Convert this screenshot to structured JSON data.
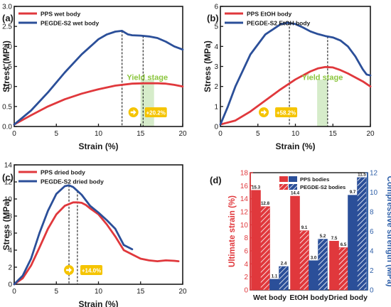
{
  "colors": {
    "red": "#e0383c",
    "blue": "#2b4f99",
    "yield_fill": "#c8e6b8",
    "yield_text": "#8cc63f",
    "badge": "#f5c400",
    "axis": "#1a1a1a",
    "right_axis": "#2e5fa8"
  },
  "chart_data": [
    {
      "panel": "(a)",
      "type": "line",
      "xlabel": "Strain (%)",
      "ylabel": "Stress (MPa)",
      "xlim": [
        0,
        20
      ],
      "ylim": [
        0,
        3.0
      ],
      "xticks": [
        0,
        5,
        10,
        15,
        20
      ],
      "yticks": [
        0,
        0.5,
        1.0,
        1.5,
        2.0,
        2.5,
        3.0
      ],
      "ytick_labels": [
        "0.0",
        "0.5",
        "1.0",
        "1.5",
        "2.0",
        "2.5",
        "3.0"
      ],
      "legend_position": "top-left",
      "series": [
        {
          "name": "PPS wet body",
          "color": "#e0383c",
          "x": [
            0,
            2,
            4,
            6,
            8,
            10,
            12,
            14,
            15.5,
            17,
            18,
            19,
            20
          ],
          "y": [
            0.05,
            0.28,
            0.5,
            0.68,
            0.82,
            0.93,
            1.02,
            1.07,
            1.08,
            1.08,
            1.07,
            1.04,
            1.0
          ]
        },
        {
          "name": "PEGDE-S2 wet body",
          "color": "#2b4f99",
          "x": [
            0,
            2,
            4,
            6,
            8,
            10,
            11,
            12,
            12.8,
            13.5,
            14,
            15,
            16,
            17,
            18,
            19,
            20
          ],
          "y": [
            0.05,
            0.4,
            0.85,
            1.35,
            1.8,
            2.18,
            2.3,
            2.37,
            2.39,
            2.3,
            2.28,
            2.27,
            2.25,
            2.21,
            2.12,
            2.0,
            1.92
          ]
        }
      ],
      "markers_x": [
        12.8,
        15.3
      ],
      "yield_stage": {
        "label": "Yield stage",
        "x_range": [
          15.0,
          16.6
        ]
      },
      "badge": {
        "text": "+20.2%"
      }
    },
    {
      "panel": "(b)",
      "type": "line",
      "xlabel": "Strain (%)",
      "ylabel": "Stress (MPa)",
      "xlim": [
        0,
        20
      ],
      "ylim": [
        0,
        6
      ],
      "xticks": [
        0,
        5,
        10,
        15,
        20
      ],
      "yticks": [
        0,
        1,
        2,
        3,
        4,
        5,
        6
      ],
      "ytick_labels": [
        "0",
        "1",
        "2",
        "3",
        "4",
        "5",
        "6"
      ],
      "legend_position": "top-left",
      "series": [
        {
          "name": "PPS EtOH body",
          "color": "#e0383c",
          "x": [
            0,
            2,
            4,
            6,
            8,
            10,
            12,
            13,
            14,
            15,
            16,
            17,
            18,
            19,
            20
          ],
          "y": [
            0.1,
            0.3,
            0.75,
            1.3,
            1.85,
            2.35,
            2.75,
            2.9,
            2.97,
            2.95,
            2.82,
            2.65,
            2.45,
            2.25,
            2.0
          ]
        },
        {
          "name": "PEGDE-S2 EtOH body",
          "color": "#2b4f99",
          "x": [
            0,
            1,
            2,
            4,
            6,
            8,
            9,
            10,
            11,
            12,
            13,
            14,
            15,
            16,
            17,
            18,
            19,
            19.5,
            20
          ],
          "y": [
            0.1,
            1.0,
            2.0,
            3.6,
            4.6,
            5.1,
            5.18,
            5.12,
            4.95,
            4.75,
            4.62,
            4.52,
            4.45,
            4.3,
            4.0,
            3.5,
            2.85,
            2.6,
            2.55
          ]
        }
      ],
      "markers_x": [
        9.2,
        14.3
      ],
      "yield_stage": {
        "label": "Yield stage",
        "x_range": [
          12.9,
          14.3
        ]
      },
      "badge": {
        "text": "+58.2%"
      }
    },
    {
      "panel": "(c)",
      "type": "line",
      "xlabel": "Strain (%)",
      "ylabel": "Stress (MPa)",
      "xlim": [
        0,
        20
      ],
      "ylim": [
        0,
        14
      ],
      "xticks": [
        0,
        5,
        10,
        15,
        20
      ],
      "yticks": [
        0,
        2,
        4,
        6,
        8,
        10,
        12,
        14
      ],
      "ytick_labels": [
        "0",
        "2",
        "4",
        "6",
        "8",
        "10",
        "12",
        "14"
      ],
      "legend_position": "top-left",
      "series": [
        {
          "name": "PPS dried body",
          "color": "#e0383c",
          "x": [
            0,
            1,
            2,
            3,
            4,
            5,
            6,
            7,
            7.5,
            8,
            8.5,
            9,
            10,
            11,
            12,
            13,
            14,
            15,
            16,
            17,
            18,
            19,
            19.5
          ],
          "y": [
            0,
            0.7,
            2.2,
            4.3,
            6.5,
            8.2,
            9.2,
            9.6,
            9.6,
            9.55,
            9.3,
            8.9,
            8.2,
            7.0,
            5.6,
            4.0,
            3.5,
            3.0,
            2.8,
            2.7,
            2.8,
            2.75,
            2.7
          ]
        },
        {
          "name": "PEGDE-S2 dried body",
          "color": "#2b4f99",
          "x": [
            0,
            1,
            2,
            3,
            4,
            5,
            6,
            6.5,
            7,
            8,
            9,
            10,
            11,
            12,
            13,
            14
          ],
          "y": [
            0,
            1.0,
            3.0,
            6.0,
            8.6,
            10.6,
            11.5,
            11.6,
            11.4,
            10.5,
            9.2,
            8.4,
            7.5,
            6.5,
            4.6,
            4.1
          ]
        }
      ],
      "markers_x": [
        6.5,
        7.5
      ],
      "badge": {
        "text": "+14.0%"
      }
    },
    {
      "panel": "(d)",
      "type": "bar",
      "categories": [
        "Wet body",
        "EtOH body",
        "Dried body"
      ],
      "ylabel": "Ultimate strain (%)",
      "y2label": "Compressive strength (MPa)",
      "ylim": [
        0,
        18
      ],
      "y2lim": [
        0,
        12
      ],
      "yticks": [
        0,
        2,
        4,
        6,
        8,
        10,
        12,
        14,
        16,
        18
      ],
      "y2ticks": [
        0,
        2,
        4,
        6,
        8,
        10,
        12
      ],
      "legend": [
        "PPS bodies",
        "PEGDE-S2 bodies"
      ],
      "legend_position": "top-center",
      "series": [
        {
          "name": "PPS bodies",
          "metric": "Ultimate strain (%)",
          "axis": "left",
          "color": "#e0383c",
          "hatched": false,
          "values": [
            15.3,
            14.4,
            7.5
          ]
        },
        {
          "name": "PEGDE-S2 bodies",
          "metric": "Ultimate strain (%)",
          "axis": "left",
          "color": "#e0383c",
          "hatched": true,
          "values": [
            12.8,
            9.1,
            6.5
          ]
        },
        {
          "name": "PPS bodies",
          "metric": "Compressive strength (MPa)",
          "axis": "right",
          "color": "#2b4f99",
          "hatched": false,
          "values": [
            1.1,
            3.0,
            9.7
          ]
        },
        {
          "name": "PEGDE-S2 bodies",
          "metric": "Compressive strength (MPa)",
          "axis": "right",
          "color": "#2b4f99",
          "hatched": true,
          "values": [
            2.4,
            5.2,
            11.5
          ]
        }
      ],
      "value_labels": [
        [
          "15.3",
          "12.8",
          "1.1",
          "2.4"
        ],
        [
          "14.4",
          "9.1",
          "3.0",
          "5.2"
        ],
        [
          "7.5",
          "6.5",
          "9.7",
          "11.5"
        ]
      ]
    }
  ]
}
